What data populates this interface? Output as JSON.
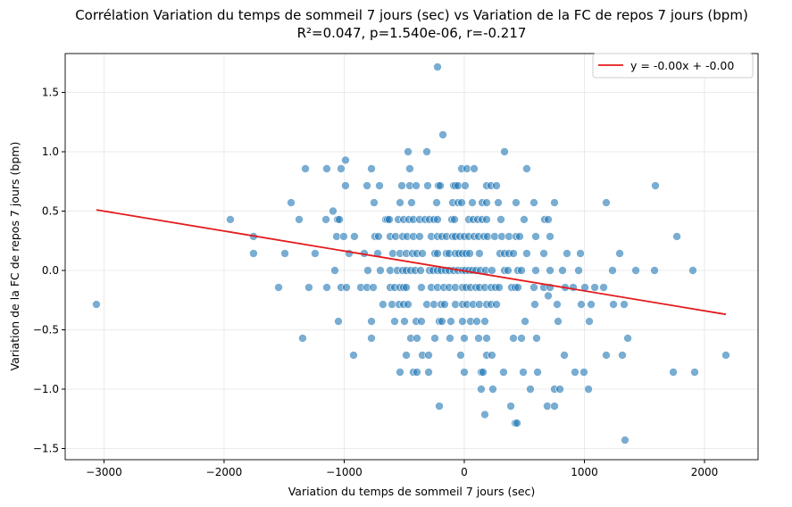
{
  "chart_data": {
    "type": "scatter",
    "title": "Corrélation Variation du temps de sommeil 7 jours (sec) vs Variation de la FC de repos 7 jours (bpm)",
    "subtitle": "R²=0.047, p=1.540e-06, r=-0.217",
    "xlabel": "Variation du temps de sommeil 7 jours (sec)",
    "ylabel": "Variation de la FC de repos 7 jours (bpm)",
    "xlim": [
      -3323,
      2446
    ],
    "ylim": [
      -1.594,
      1.827
    ],
    "xticks": [
      -3000,
      -2000,
      -1000,
      0,
      1000,
      2000
    ],
    "xtick_labels": [
      "−3000",
      "−2000",
      "−1000",
      "0",
      "1000",
      "2000"
    ],
    "yticks": [
      -1.5,
      -1.0,
      -0.5,
      0.0,
      0.5,
      1.0,
      1.5
    ],
    "ytick_labels": [
      "−1.5",
      "−1.0",
      "−0.5",
      "0.0",
      "0.5",
      "1.0",
      "1.5"
    ],
    "grid": true,
    "legend": {
      "position": "top-right",
      "entries": [
        "y = -0.00x + -0.00"
      ]
    },
    "colors": {
      "points": "#1f77b4",
      "fit_line": "#e41a1c"
    },
    "fit_line": {
      "slope": -0.000168,
      "intercept": -0.004,
      "x_range": [
        -3063,
        2178
      ]
    },
    "rows": [
      {
        "y": 1.714,
        "x": [
          -223
        ]
      },
      {
        "y": 1.143,
        "x": [
          -178
        ]
      },
      {
        "y": 1.0,
        "x": [
          -468,
          -312,
          335
        ]
      },
      {
        "y": 0.929,
        "x": [
          -989
        ]
      },
      {
        "y": 0.857,
        "x": [
          -1323,
          -1145,
          -1026,
          -773,
          -454,
          -22,
          22,
          82,
          520
        ]
      },
      {
        "y": 0.714,
        "x": [
          -989,
          -810,
          -706,
          -520,
          -454,
          -401,
          -305,
          -216,
          -201,
          -89,
          -74,
          -52,
          7,
          186,
          223,
          268,
          1591
        ]
      },
      {
        "y": 0.571,
        "x": [
          -1442,
          -751,
          -535,
          -439,
          -230,
          -97,
          -52,
          -22,
          67,
          149,
          186,
          283,
          431,
          580,
          751,
          1182
        ]
      },
      {
        "y": 0.5,
        "x": [
          -1093
        ]
      },
      {
        "y": 0.429,
        "x": [
          -1948,
          -1375,
          -1152,
          -1055,
          -1040,
          -654,
          -639,
          -624,
          -550,
          -505,
          -461,
          -424,
          -372,
          -327,
          -290,
          -253,
          -223,
          -104,
          -82,
          37,
          74,
          112,
          149,
          186,
          305,
          498,
          669,
          699
        ]
      },
      {
        "y": 0.286,
        "x": [
          -1755,
          -1063,
          -1004,
          -915,
          -744,
          -714,
          -617,
          -572,
          -513,
          -476,
          -424,
          -372,
          -275,
          -223,
          -186,
          -149,
          -97,
          -74,
          -37,
          0,
          37,
          82,
          119,
          164,
          193,
          253,
          312,
          372,
          431,
          461,
          595,
          714,
          1770
        ]
      },
      {
        "y": 0.143,
        "x": [
          -1755,
          -1494,
          -1242,
          -959,
          -833,
          -721,
          -595,
          -535,
          -483,
          -431,
          -394,
          -349,
          -245,
          -223,
          -149,
          -126,
          -74,
          -45,
          -15,
          15,
          45,
          126,
          297,
          335,
          372,
          409,
          520,
          662,
          855,
          967,
          1294
        ]
      },
      {
        "y": 0.0,
        "x": [
          -1078,
          -803,
          -699,
          -617,
          -558,
          -513,
          -483,
          -446,
          -409,
          -364,
          -290,
          -260,
          -223,
          -193,
          -156,
          -126,
          -89,
          -52,
          -15,
          7,
          37,
          67,
          97,
          134,
          178,
          230,
          335,
          364,
          446,
          476,
          595,
          714,
          818,
          952,
          1234,
          1428,
          1584,
          1903
        ]
      },
      {
        "y": -0.143,
        "x": [
          -1546,
          -1294,
          -1145,
          -1026,
          -981,
          -862,
          -810,
          -758,
          -617,
          -580,
          -535,
          -505,
          -483,
          -357,
          -275,
          -223,
          -171,
          -126,
          -74,
          -15,
          15,
          52,
          97,
          126,
          171,
          223,
          260,
          290,
          394,
          424,
          446,
          580,
          662,
          714,
          840,
          907,
          1004,
          1086,
          1160
        ]
      },
      {
        "y": -0.214,
        "x": [
          699
        ]
      },
      {
        "y": -0.286,
        "x": [
          -3063,
          -677,
          -602,
          -543,
          -505,
          -468,
          -312,
          -253,
          -193,
          -164,
          -74,
          -15,
          22,
          74,
          126,
          186,
          223,
          268,
          587,
          773,
          974,
          1056,
          1242,
          1331
        ]
      },
      {
        "y": -0.429,
        "x": [
          -1048,
          -773,
          -580,
          -498,
          -401,
          -357,
          -208,
          -186,
          -112,
          -15,
          52,
          104,
          171,
          506,
          781,
          1041
        ]
      },
      {
        "y": -0.571,
        "x": [
          -1346,
          -773,
          -446,
          -394,
          -245,
          -119,
          0,
          119,
          186,
          409,
          476,
          602,
          1361
        ]
      },
      {
        "y": -0.714,
        "x": [
          -922,
          -483,
          -349,
          -297,
          -30,
          186,
          230,
          833,
          1182,
          1316,
          2178
        ]
      },
      {
        "y": -0.857,
        "x": [
          -535,
          -424,
          -394,
          -297,
          0,
          141,
          156,
          327,
          491,
          610,
          922,
          996,
          1740,
          1918
        ]
      },
      {
        "y": -1.0,
        "x": [
          141,
          238,
          550,
          751,
          796,
          1034
        ]
      },
      {
        "y": -1.143,
        "x": [
          -208,
          387,
          691,
          751
        ]
      },
      {
        "y": -1.214,
        "x": [
          171
        ]
      },
      {
        "y": -1.286,
        "x": [
          424,
          439
        ]
      },
      {
        "y": -1.429,
        "x": [
          1338
        ]
      }
    ]
  }
}
